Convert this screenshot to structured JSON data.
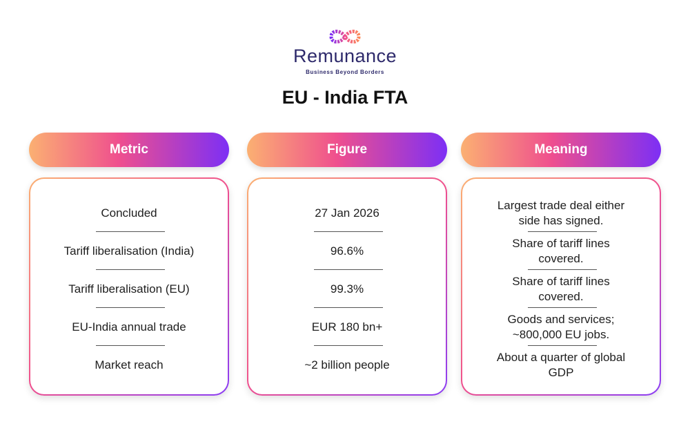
{
  "header": {
    "brand": "Remunance",
    "tagline": "Business Beyond Borders",
    "title": "EU - India FTA"
  },
  "columns": [
    {
      "header": "Metric",
      "items": [
        "Concluded",
        "Tariff liberalisation (India)",
        "Tariff liberalisation (EU)",
        "EU-India annual trade",
        "Market reach"
      ]
    },
    {
      "header": "Figure",
      "items": [
        "27 Jan 2026",
        "96.6%",
        "99.3%",
        "EUR 180 bn+",
        "~2 billion people"
      ]
    },
    {
      "header": "Meaning",
      "items": [
        "Largest trade deal either side has signed.",
        "Share of tariff lines covered.",
        "Share of tariff lines covered.",
        "Goods and services; ~800,000 EU jobs.",
        "About a quarter of global GDP"
      ]
    }
  ]
}
